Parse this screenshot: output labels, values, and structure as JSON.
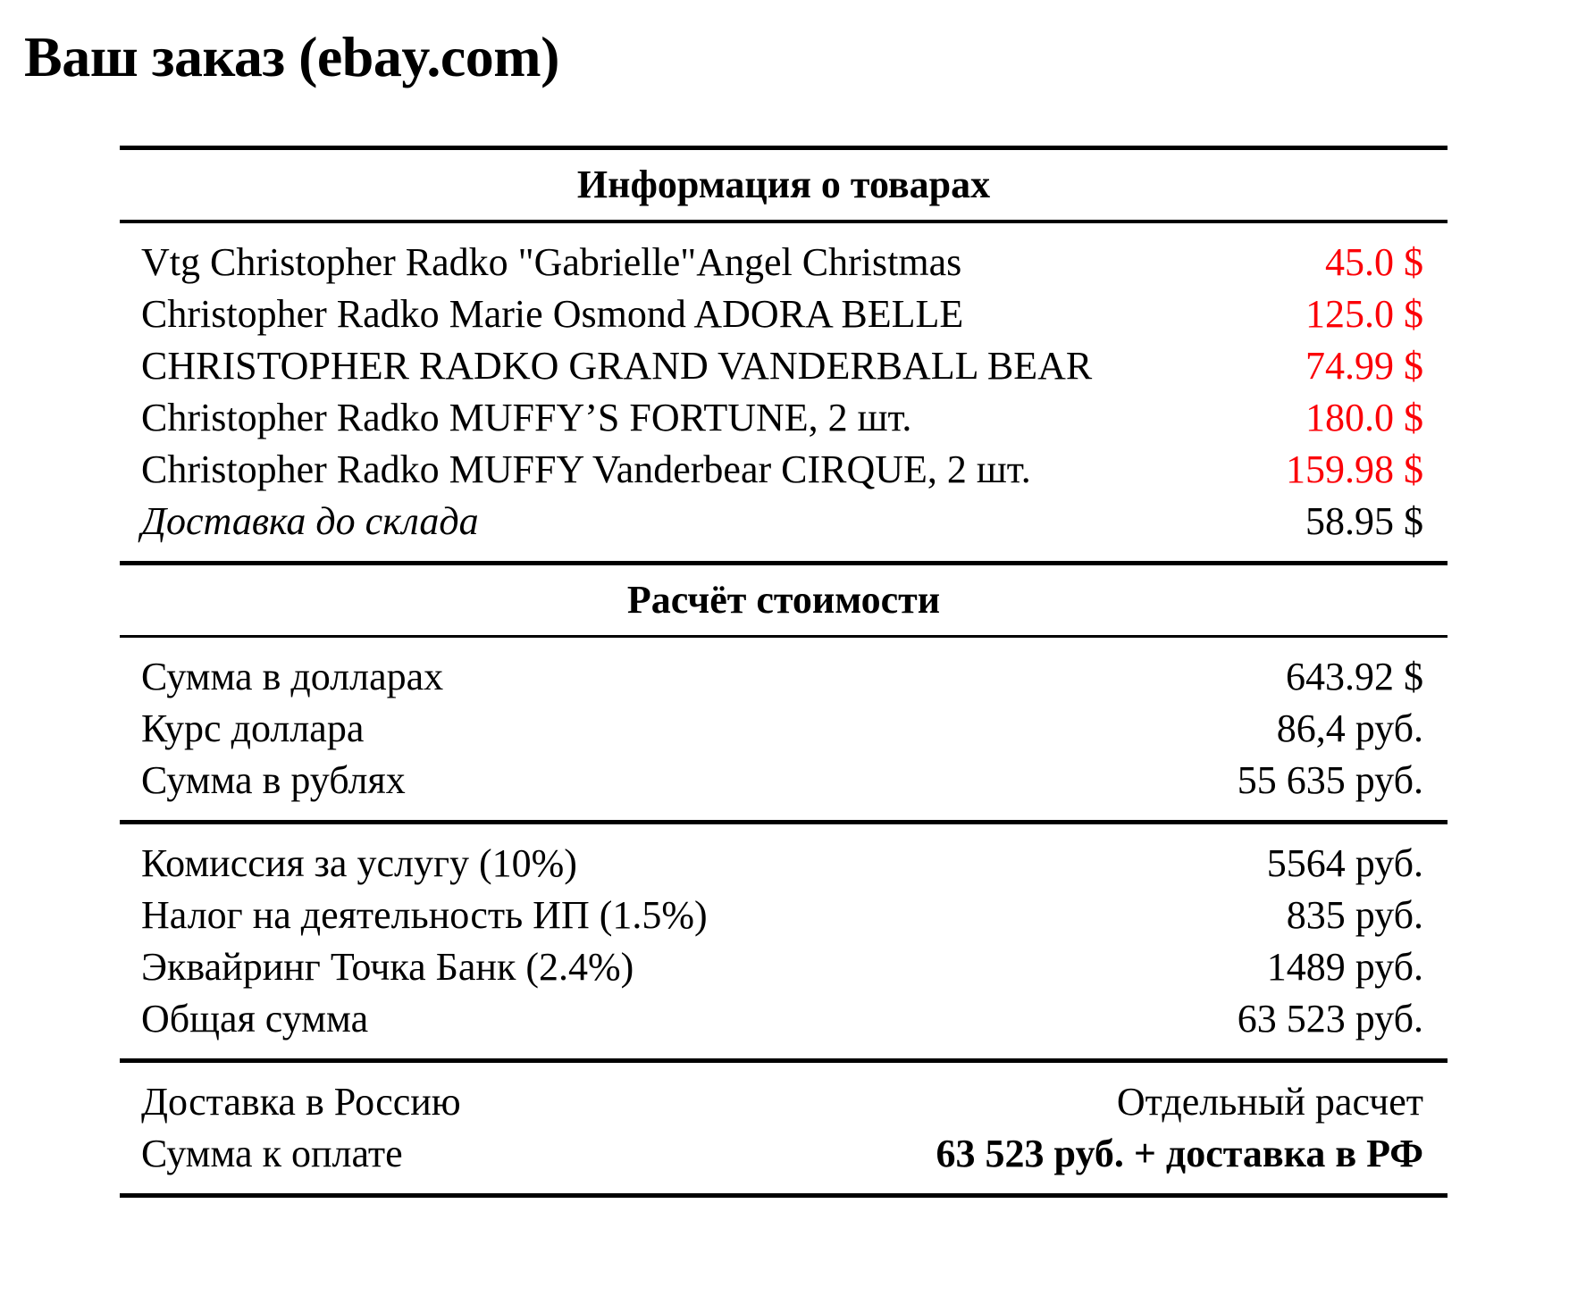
{
  "page": {
    "title": "Ваш заказ (ebay.com)"
  },
  "colors": {
    "background": "#ffffff",
    "text": "#000000",
    "price_red": "#fb0007",
    "rule": "#000000"
  },
  "table": {
    "products": {
      "header": "Информация о товарах",
      "items": [
        {
          "name": "Vtg Christopher Radko \"Gabrielle\"Angel Christmas",
          "price": "45.0 $"
        },
        {
          "name": "Christopher Radko Marie Osmond ADORA BELLE",
          "price": "125.0 $"
        },
        {
          "name": "CHRISTOPHER RADKO GRAND VANDERBALL BEAR",
          "price": "74.99 $"
        },
        {
          "name": "Christopher Radko MUFFY’S FORTUNE, 2 шт.",
          "price": "180.0 $"
        },
        {
          "name": "Christopher Radko MUFFY Vanderbear CIRQUE, 2 шт.",
          "price": "159.98 $"
        },
        {
          "name": "Доставка до склада",
          "price": "58.95 $"
        }
      ]
    },
    "cost": {
      "header": "Расчёт стоимости",
      "rows": [
        {
          "label": "Сумма в долларах",
          "value": "643.92 $"
        },
        {
          "label": "Курс доллара",
          "value": "86,4 руб."
        },
        {
          "label": "Сумма в рублях",
          "value": "55 635 руб."
        }
      ]
    },
    "fees": {
      "rows": [
        {
          "label": "Комиссия за услугу (10%)",
          "value": "5564 руб."
        },
        {
          "label": "Налог на деятельность ИП (1.5%)",
          "value": "835 руб."
        },
        {
          "label": "Эквайринг Точка Банк (2.4%)",
          "value": "1489 руб."
        },
        {
          "label": "Общая сумма",
          "value": "63 523 руб."
        }
      ]
    },
    "totals": {
      "rows": [
        {
          "label": "Доставка в Россию",
          "value": "Отдельный расчет"
        },
        {
          "label": "Сумма к оплате",
          "value": "63 523 руб. + доставка в РФ"
        }
      ]
    }
  }
}
